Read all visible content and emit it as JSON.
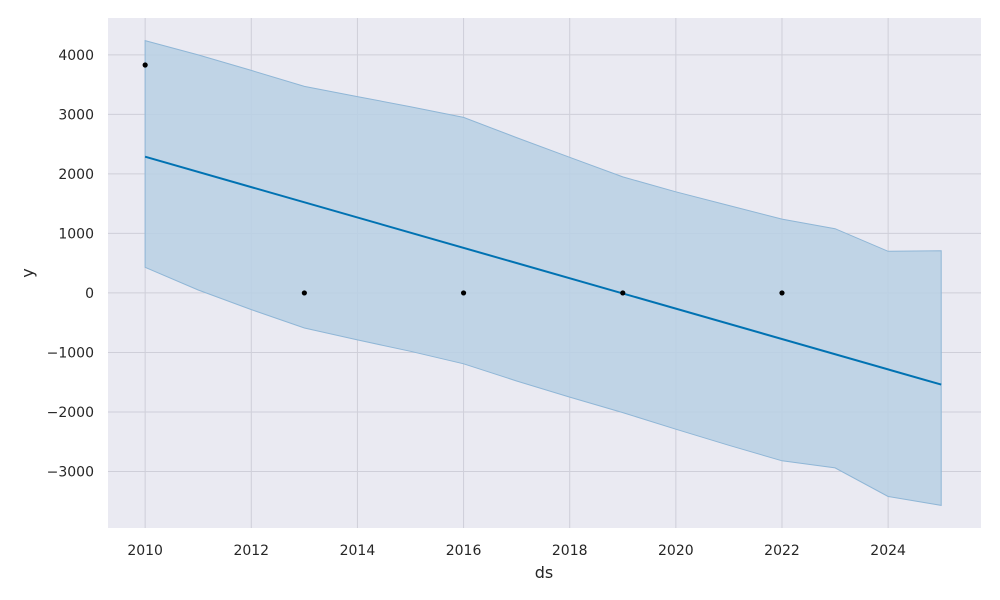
{
  "chart_data": {
    "type": "line",
    "title": "",
    "xlabel": "ds",
    "ylabel": "y",
    "xlim": [
      2009.3,
      2025.75
    ],
    "ylim": [
      -3950,
      4620
    ],
    "grid": true,
    "background": "#eaeaf2",
    "colors": {
      "forecast_line": "#0072b2",
      "uncertainty_band": "#b9d0e4",
      "band_edge": "#8fb6d6",
      "observed_points": "#000000",
      "grid": "#cfcfd9"
    },
    "x_ticks": [
      2010,
      2012,
      2014,
      2016,
      2018,
      2020,
      2022,
      2024
    ],
    "x_tick_labels": [
      "2010",
      "2012",
      "2014",
      "2016",
      "2018",
      "2020",
      "2022",
      "2024"
    ],
    "y_ticks": [
      -3000,
      -2000,
      -1000,
      0,
      1000,
      2000,
      3000,
      4000
    ],
    "y_tick_labels": [
      "−3000",
      "−2000",
      "−1000",
      "0",
      "1000",
      "2000",
      "3000",
      "4000"
    ],
    "observed": {
      "x": [
        2010,
        2013,
        2016,
        2019,
        2022
      ],
      "y": [
        3830,
        0,
        0,
        0,
        0
      ]
    },
    "forecast": {
      "x": [
        2010,
        2025
      ],
      "y": [
        2290,
        -1540
      ]
    },
    "uncertainty": {
      "x": [
        2010,
        2011,
        2012,
        2013,
        2014,
        2015,
        2016,
        2017,
        2018,
        2019,
        2020,
        2021,
        2022,
        2023,
        2024,
        2025
      ],
      "upper": [
        4240,
        4000,
        3740,
        3470,
        3300,
        3130,
        2950,
        2610,
        2280,
        1950,
        1700,
        1470,
        1240,
        1080,
        700,
        710
      ],
      "lower": [
        430,
        50,
        -280,
        -590,
        -790,
        -980,
        -1190,
        -1480,
        -1750,
        -2010,
        -2290,
        -2560,
        -2820,
        -2940,
        -3420,
        -3570
      ]
    }
  }
}
